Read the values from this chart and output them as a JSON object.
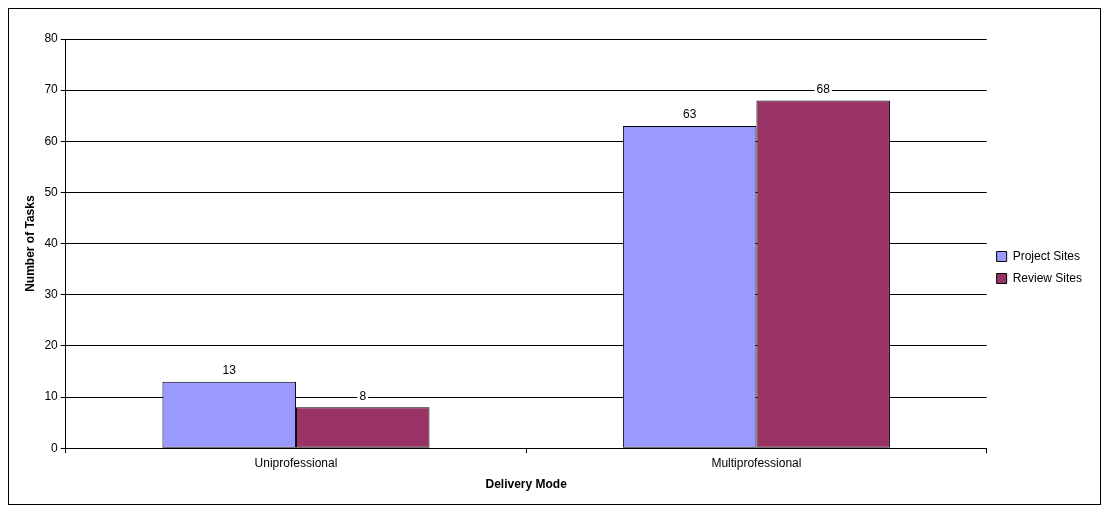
{
  "chart_data": {
    "type": "bar",
    "xlabel": "Delivery Mode",
    "ylabel": "Number of Tasks",
    "categories": [
      "Uniprofessional",
      "Multiprofessional"
    ],
    "series": [
      {
        "name": "Project Sites",
        "color": "#9999ff",
        "values": [
          13,
          63
        ]
      },
      {
        "name": "Review Sites",
        "color": "#993366",
        "values": [
          8,
          68
        ]
      }
    ],
    "ylim": [
      0,
      80
    ],
    "yticks": [
      0,
      10,
      20,
      30,
      40,
      50,
      60,
      70,
      80
    ],
    "grid": "y",
    "legend": "right",
    "data_labels": true
  }
}
